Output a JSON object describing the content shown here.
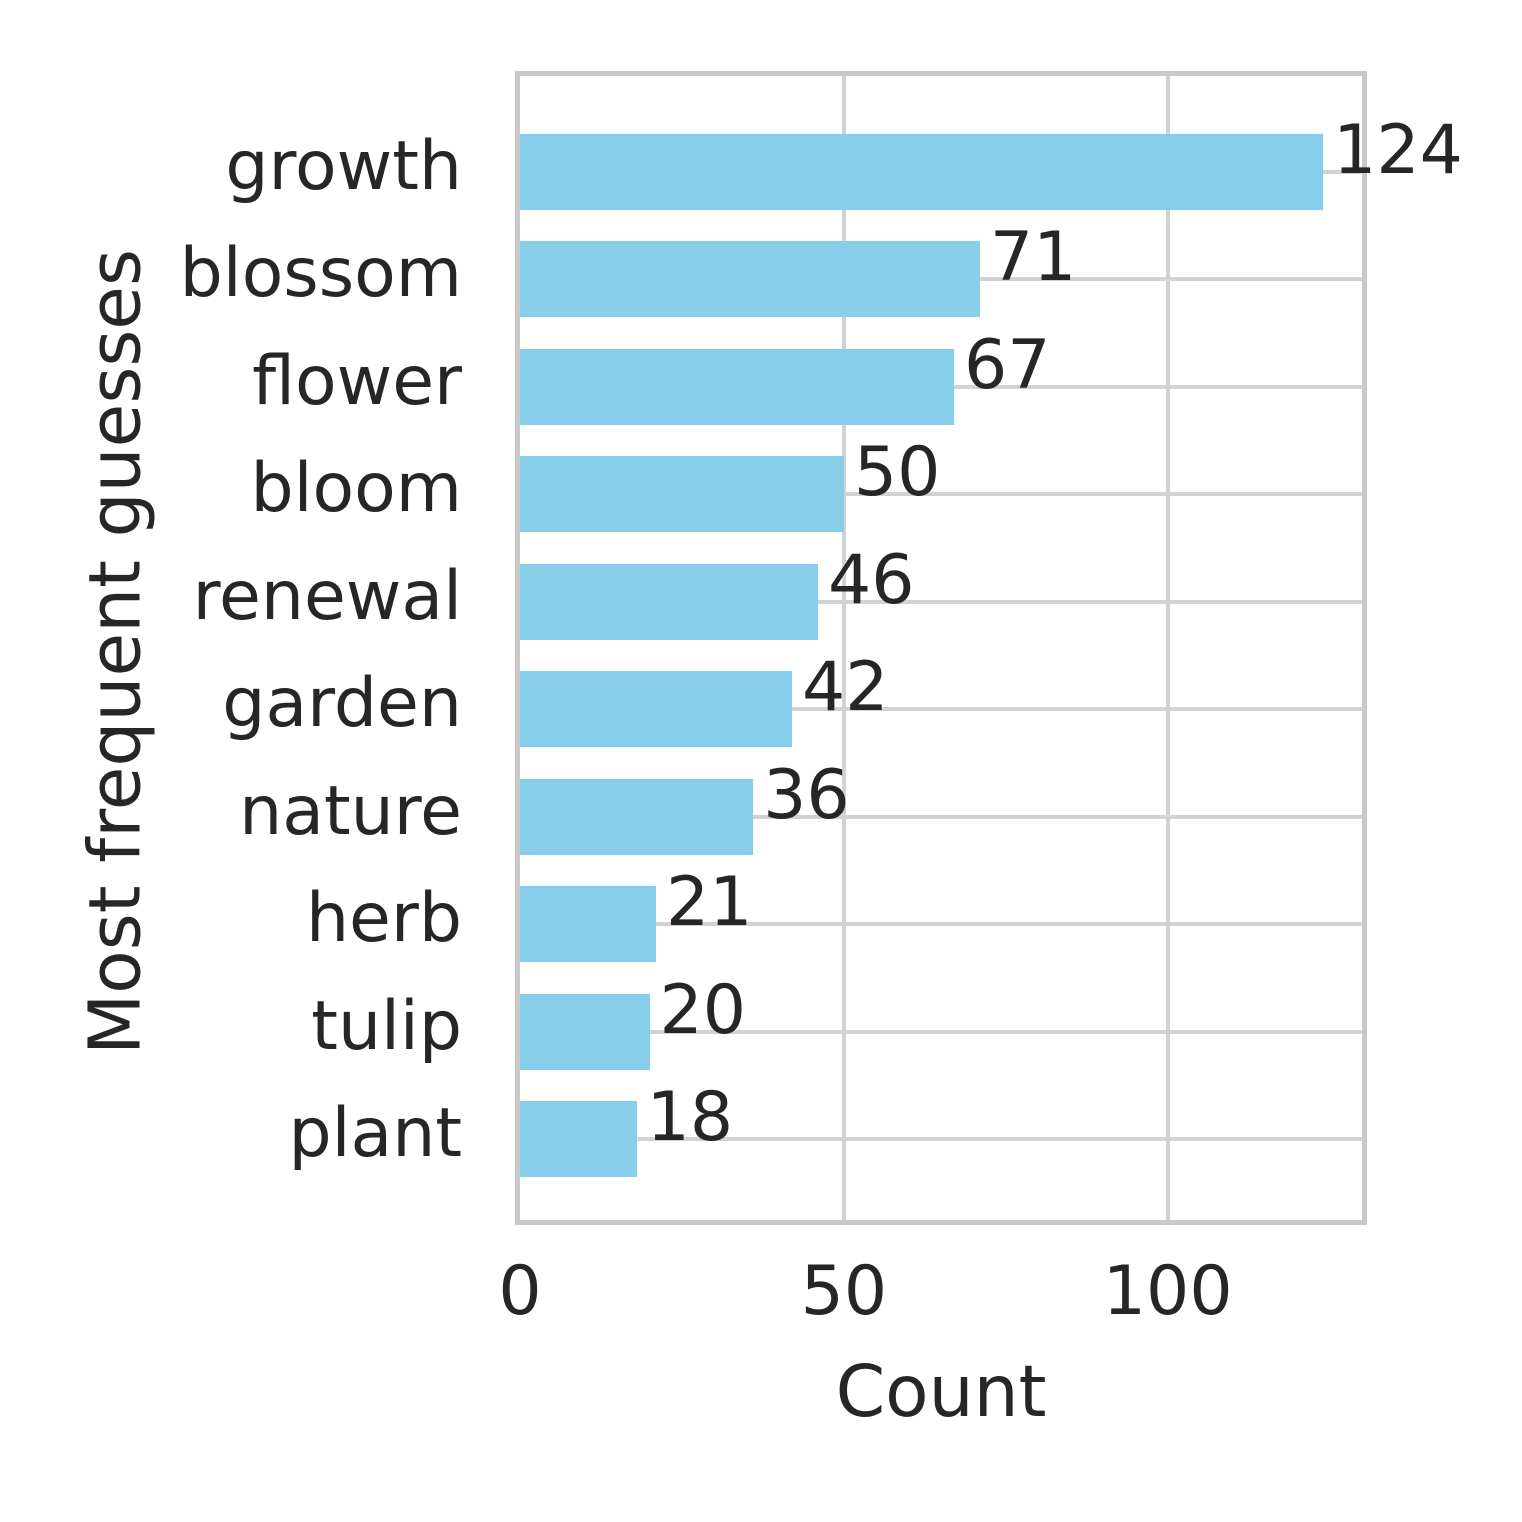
{
  "figure": {
    "background": "#ffffff",
    "text_color": "#262626",
    "grid_color": "#d2d2d2",
    "spine_color": "#c8c8c8"
  },
  "chart_data": {
    "type": "bar",
    "orientation": "horizontal",
    "title": "",
    "xlabel": "Count",
    "ylabel": "Most frequent guesses",
    "categories": [
      "growth",
      "blossom",
      "flower",
      "bloom",
      "renewal",
      "garden",
      "nature",
      "herb",
      "tulip",
      "plant"
    ],
    "values": [
      124,
      71,
      67,
      50,
      46,
      42,
      36,
      21,
      20,
      18
    ],
    "bar_color": "#87ceeb",
    "xticks": [
      0,
      50,
      100
    ],
    "xlim": [
      0,
      130
    ],
    "grid": true,
    "legend": false,
    "value_labels": true
  }
}
